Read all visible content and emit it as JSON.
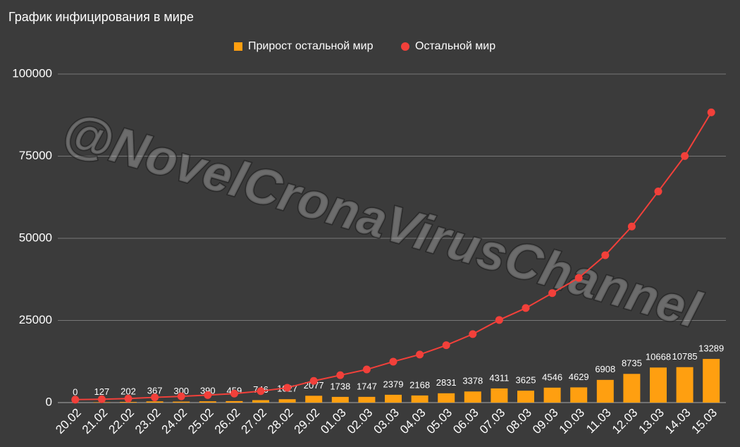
{
  "chart_data": {
    "type": "bar_line",
    "title": "График инфицирования в мире",
    "watermark": "@NovelCronaVirusChannel",
    "categories": [
      "20.02",
      "21.02",
      "22.02",
      "23.02",
      "24.02",
      "25.02",
      "26.02",
      "27.02",
      "28.02",
      "29.02",
      "01.03",
      "02.03",
      "03.03",
      "04.03",
      "05.03",
      "06.03",
      "07.03",
      "08.03",
      "09.03",
      "10.03",
      "11.03",
      "12.03",
      "13.03",
      "14.03",
      "15.03"
    ],
    "series": [
      {
        "name": "Прирост остальной мир",
        "type": "bar",
        "color": "#ff9f10",
        "values": [
          0,
          127,
          202,
          367,
          300,
          390,
          459,
          746,
          1027,
          2077,
          1738,
          1747,
          2379,
          2168,
          2831,
          3378,
          4311,
          3625,
          4546,
          4629,
          6908,
          8735,
          10668,
          10785,
          13289
        ]
      },
      {
        "name": "Остальной мир",
        "type": "line",
        "color": "#f2403a",
        "values": [
          900,
          1027,
          1229,
          1596,
          1896,
          2286,
          2745,
          3491,
          4518,
          6595,
          8333,
          10080,
          12459,
          14627,
          17458,
          20836,
          25147,
          28772,
          33318,
          37947,
          44855,
          53590,
          64258,
          75043,
          88332
        ]
      }
    ],
    "ylim": [
      0,
      100000
    ],
    "yticks": [
      0,
      25000,
      50000,
      75000,
      100000
    ],
    "grid": true,
    "legend": "top"
  }
}
